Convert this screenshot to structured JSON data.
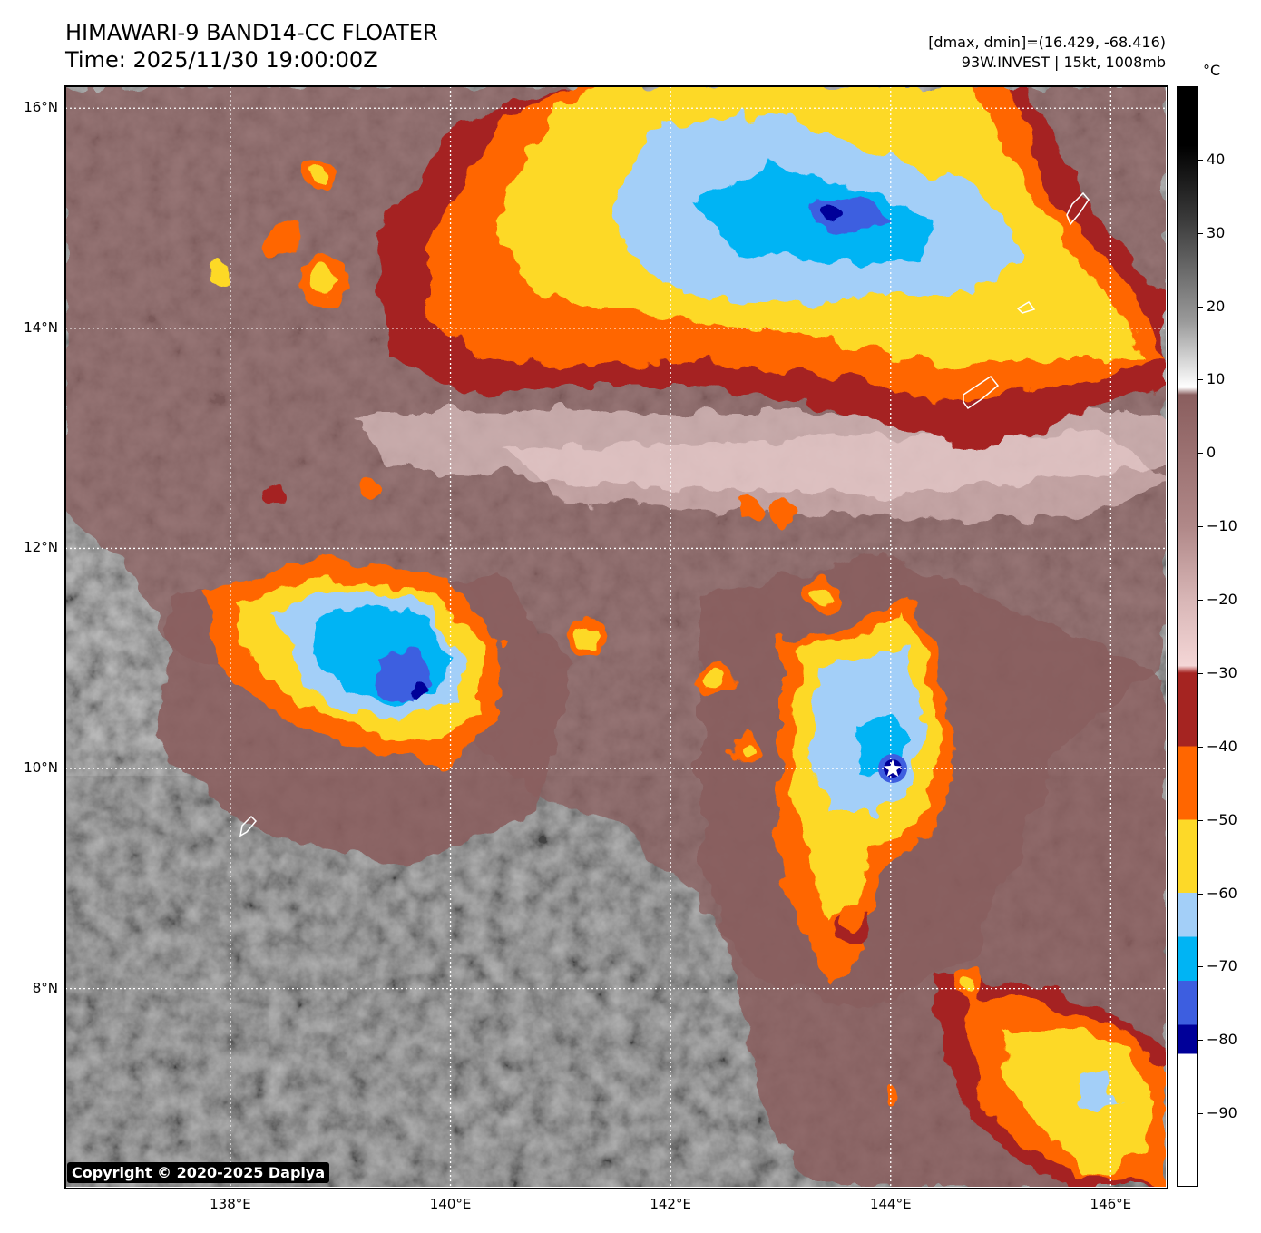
{
  "title_line1": "HIMAWARI-9 BAND14-CC FLOATER",
  "title_line2": "Time: 2025/11/30 19:00:00Z",
  "info_line1": "[dmax, dmin]=(16.429, -68.416)",
  "info_line2": "93W.INVEST | 15kt, 1008mb",
  "copyright": "Copyright © 2020-2025 Dapiya",
  "map": {
    "lon_range": [
      136.5,
      146.5
    ],
    "lat_range": [
      6.2,
      16.2
    ],
    "lat_ticks": [
      {
        "value": 16,
        "label": "16°N"
      },
      {
        "value": 14,
        "label": "14°N"
      },
      {
        "value": 12,
        "label": "12°N"
      },
      {
        "value": 10,
        "label": "10°N"
      },
      {
        "value": 8,
        "label": "8°N"
      }
    ],
    "lon_ticks": [
      {
        "value": 138,
        "label": "138°E"
      },
      {
        "value": 140,
        "label": "140°E"
      },
      {
        "value": 142,
        "label": "142°E"
      },
      {
        "value": 144,
        "label": "144°E"
      },
      {
        "value": 146,
        "label": "146°E"
      }
    ],
    "storm_center": {
      "lon": 144.0,
      "lat": 10.0,
      "marker": "star-icon"
    },
    "cloud_systems": [
      {
        "name": "northern-band",
        "lon": 142.3,
        "lat": 14.6
      },
      {
        "name": "western-cluster",
        "lon": 139.6,
        "lat": 10.9
      },
      {
        "name": "central-cluster",
        "lon": 143.9,
        "lat": 10.2
      },
      {
        "name": "southeast-cluster",
        "lon": 145.4,
        "lat": 7.0
      }
    ]
  },
  "colorbar": {
    "unit": "°C",
    "range": [
      -100,
      50
    ],
    "ticks": [
      {
        "value": 40,
        "label": "40"
      },
      {
        "value": 30,
        "label": "30"
      },
      {
        "value": 20,
        "label": "20"
      },
      {
        "value": 10,
        "label": "10"
      },
      {
        "value": 0,
        "label": "0"
      },
      {
        "value": -10,
        "label": "−10"
      },
      {
        "value": -20,
        "label": "−20"
      },
      {
        "value": -30,
        "label": "−30"
      },
      {
        "value": -40,
        "label": "−40"
      },
      {
        "value": -50,
        "label": "−50"
      },
      {
        "value": -60,
        "label": "−60"
      },
      {
        "value": -70,
        "label": "−70"
      },
      {
        "value": -80,
        "label": "−80"
      },
      {
        "value": -90,
        "label": "−90"
      }
    ],
    "colors": {
      "black": "#000000",
      "white": "#ffffff",
      "brown": "#8a5e5e",
      "pink": "#f4d6d6",
      "darkred": "#a52421",
      "orange": "#ff6600",
      "yellow": "#fdd928",
      "lightblue": "#a3cff8",
      "cyan": "#00b4f4",
      "blue": "#3d5ee0",
      "navy": "#000099"
    }
  }
}
